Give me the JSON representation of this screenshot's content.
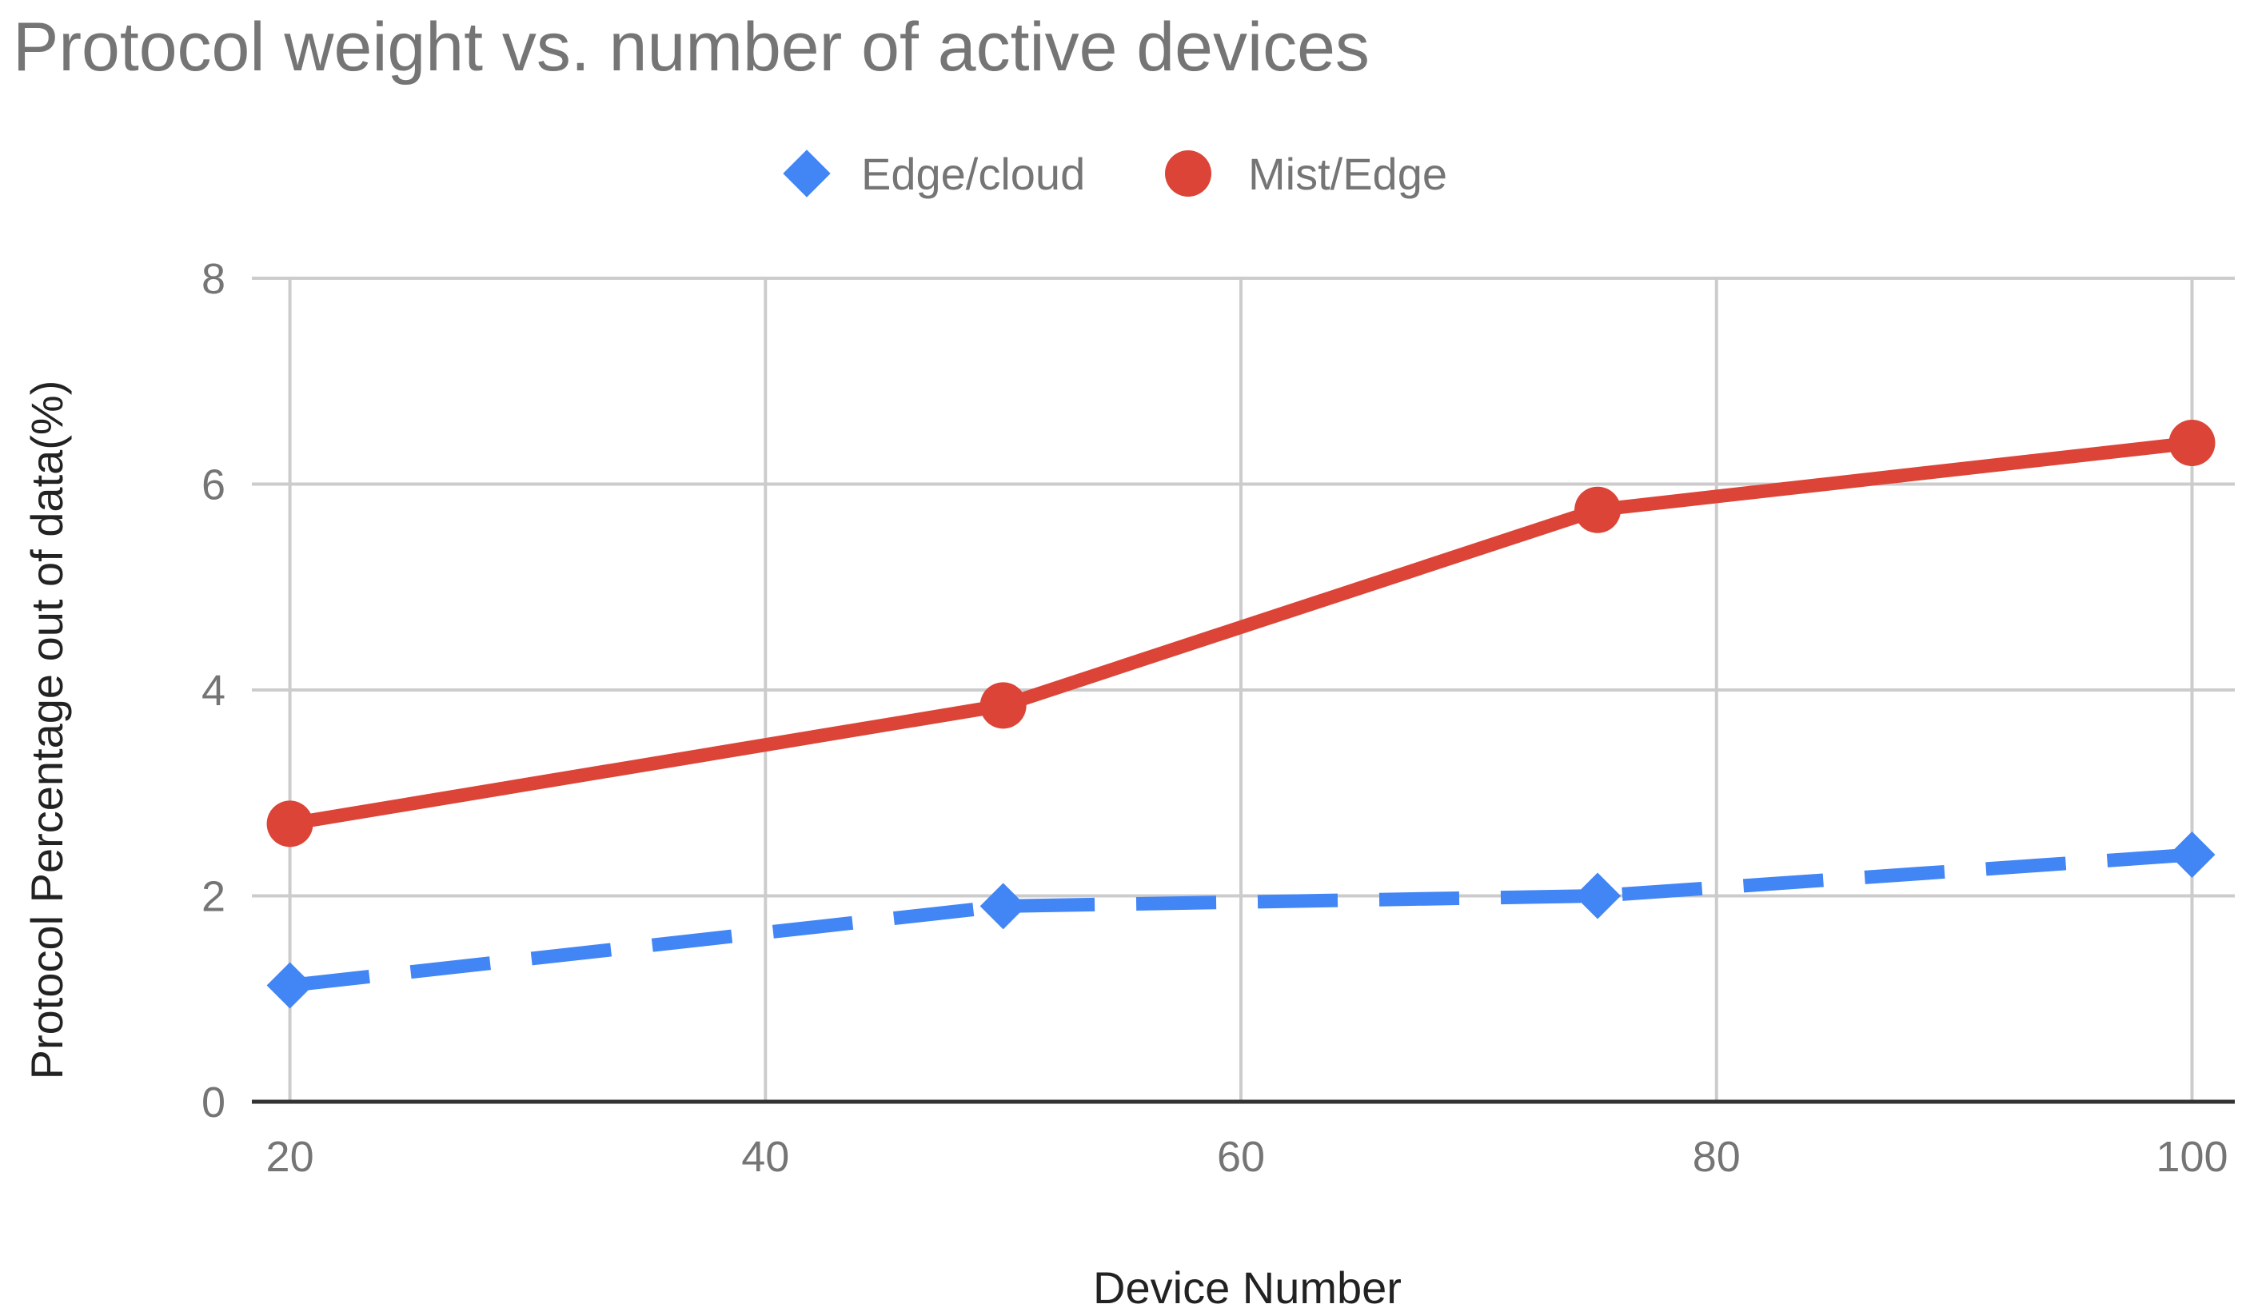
{
  "chart_data": {
    "type": "line",
    "title": "Protocol weight vs. number of active devices",
    "xlabel": "Device Number",
    "ylabel": "Protocol Percentage out of data(%)",
    "xlim": [
      18.4,
      101.8
    ],
    "ylim": [
      0,
      8
    ],
    "x_ticks": [
      20,
      40,
      60,
      80,
      100
    ],
    "y_ticks": [
      0,
      2,
      4,
      6,
      8
    ],
    "grid": true,
    "legend_position": "top",
    "series": [
      {
        "name": "Edge/cloud",
        "color": "#4285f4",
        "marker": "diamond",
        "line_style": "dashed",
        "x": [
          20,
          50,
          75,
          100
        ],
        "y": [
          1.13,
          1.9,
          2.0,
          2.4
        ]
      },
      {
        "name": "Mist/Edge",
        "color": "#db4437",
        "marker": "circle",
        "line_style": "solid",
        "x": [
          20,
          50,
          75,
          100
        ],
        "y": [
          2.7,
          3.85,
          5.75,
          6.4
        ]
      }
    ]
  }
}
